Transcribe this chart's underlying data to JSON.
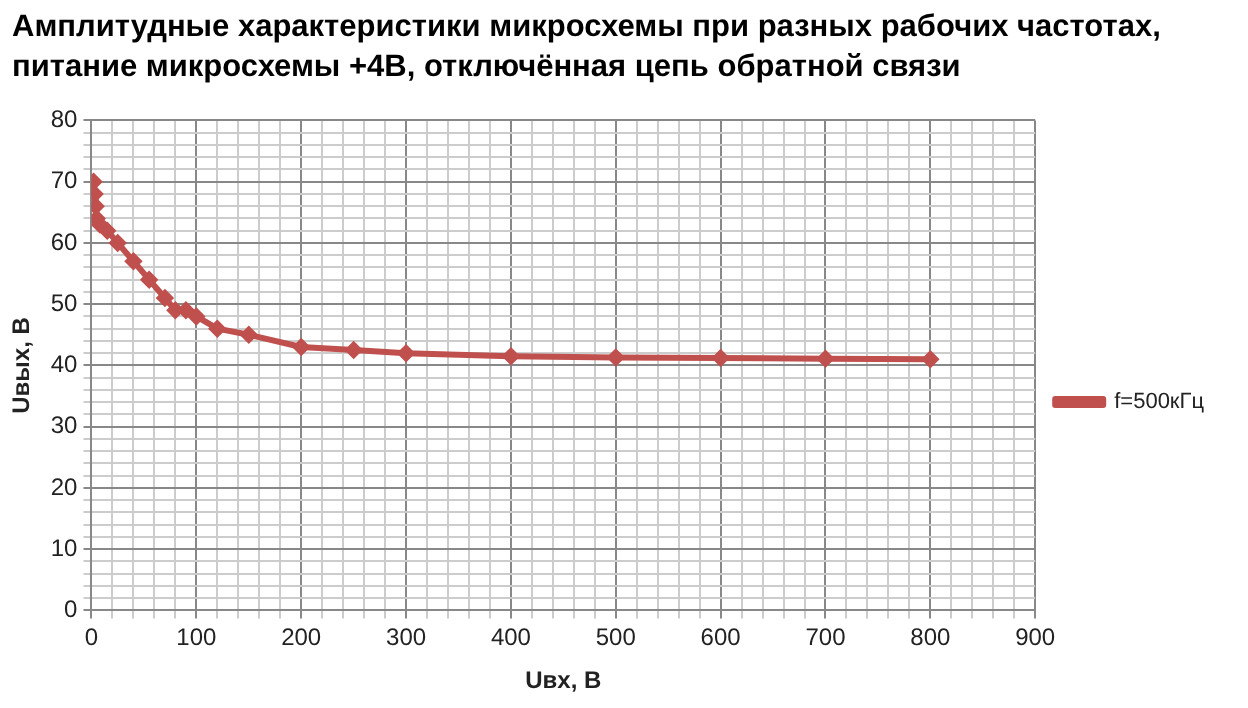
{
  "chart_data": {
    "type": "line",
    "title": "Амплитудные характеристики микросхемы при разных рабочих частотах, питание микросхемы +4В, отключённая цепь обратной связи",
    "xlabel": "Uвх, В",
    "ylabel": "Uвых, В",
    "xlim": [
      0,
      900
    ],
    "xticks": [
      0,
      {
        "value": 20,
        "label": null
      },
      {
        "value": 40,
        "label": null
      },
      {
        "value": 60,
        "label": null
      },
      {
        "value": 80,
        "label": null
      },
      100,
      {
        "value": 120,
        "label": null
      },
      {
        "value": 140,
        "label": null
      },
      {
        "value": 160,
        "label": null
      },
      {
        "value": 180,
        "label": null
      },
      200,
      {
        "value": 220,
        "label": null
      },
      {
        "value": 240,
        "label": null
      },
      {
        "value": 260,
        "label": null
      },
      {
        "value": 280,
        "label": null
      },
      300,
      {
        "value": 320,
        "label": null
      },
      {
        "value": 340,
        "label": null
      },
      {
        "value": 360,
        "label": null
      },
      {
        "value": 380,
        "label": null
      },
      400,
      {
        "value": 420,
        "label": null
      },
      {
        "value": 440,
        "label": null
      },
      {
        "value": 460,
        "label": null
      },
      {
        "value": 480,
        "label": null
      },
      500,
      {
        "value": 520,
        "label": null
      },
      {
        "value": 540,
        "label": null
      },
      {
        "value": 560,
        "label": null
      },
      {
        "value": 580,
        "label": null
      },
      600,
      {
        "value": 620,
        "label": null
      },
      {
        "value": 640,
        "label": null
      },
      {
        "value": 660,
        "label": null
      },
      {
        "value": 680,
        "label": null
      },
      700,
      {
        "value": 720,
        "label": null
      },
      {
        "value": 740,
        "label": null
      },
      {
        "value": 760,
        "label": null
      },
      {
        "value": 780,
        "label": null
      },
      800,
      {
        "value": 820,
        "label": null
      },
      {
        "value": 840,
        "label": null
      },
      {
        "value": 860,
        "label": null
      },
      {
        "value": 880,
        "label": null
      },
      900
    ],
    "ylim": [
      0,
      80
    ],
    "yticks": [
      0,
      {
        "value": 2,
        "label": null
      },
      {
        "value": 4,
        "label": null
      },
      {
        "value": 6,
        "label": null
      },
      {
        "value": 8,
        "label": null
      },
      10,
      {
        "value": 12,
        "label": null
      },
      {
        "value": 14,
        "label": null
      },
      {
        "value": 16,
        "label": null
      },
      {
        "value": 18,
        "label": null
      },
      20,
      {
        "value": 22,
        "label": null
      },
      {
        "value": 24,
        "label": null
      },
      {
        "value": 26,
        "label": null
      },
      {
        "value": 28,
        "label": null
      },
      30,
      {
        "value": 32,
        "label": null
      },
      {
        "value": 34,
        "label": null
      },
      {
        "value": 36,
        "label": null
      },
      {
        "value": 38,
        "label": null
      },
      40,
      {
        "value": 42,
        "label": null
      },
      {
        "value": 44,
        "label": null
      },
      {
        "value": 46,
        "label": null
      },
      {
        "value": 48,
        "label": null
      },
      50,
      {
        "value": 52,
        "label": null
      },
      {
        "value": 54,
        "label": null
      },
      {
        "value": 56,
        "label": null
      },
      {
        "value": 58,
        "label": null
      },
      60,
      {
        "value": 62,
        "label": null
      },
      {
        "value": 64,
        "label": null
      },
      {
        "value": 66,
        "label": null
      },
      {
        "value": 68,
        "label": null
      },
      70,
      {
        "value": 72,
        "label": null
      },
      {
        "value": 74,
        "label": null
      },
      {
        "value": 76,
        "label": null
      },
      {
        "value": 78,
        "label": null
      },
      80
    ],
    "grid": true,
    "legend": "right",
    "marker": "diamond",
    "line_style": "solid",
    "series": [
      {
        "name": "f=500кГц",
        "color": "#c0504d",
        "x": [
          2,
          3,
          4,
          5,
          8,
          15,
          25,
          40,
          55,
          70,
          80,
          90,
          100,
          120,
          150,
          200,
          250,
          300,
          400,
          500,
          600,
          700,
          800
        ],
        "values": [
          70,
          68,
          66,
          64,
          63,
          62,
          60,
          57,
          54,
          51,
          49,
          49,
          48,
          46,
          45,
          43,
          42.5,
          42,
          41.5,
          41.3,
          41.2,
          41.1,
          41
        ]
      }
    ]
  }
}
